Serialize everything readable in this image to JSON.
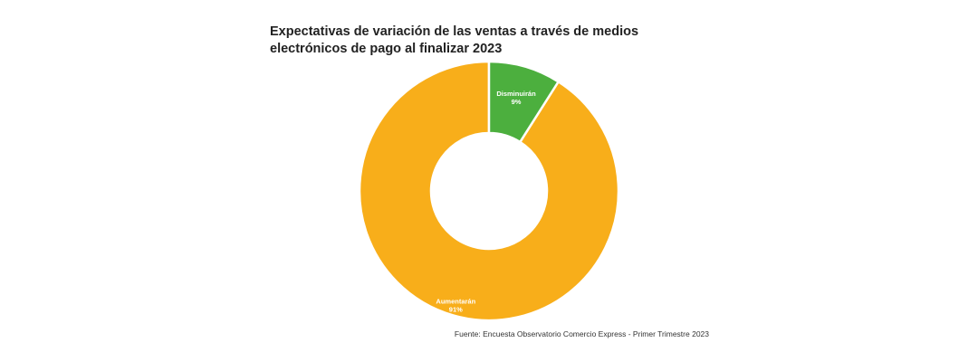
{
  "title": "Expectativas de variación de las ventas a través de medios electrónicos de pago al finalizar 2023",
  "source": "Fuente: Encuesta Observatorio Comercio Express - Primer Trimestre 2023",
  "colors": {
    "aumentaran": "#F8AE1A",
    "disminuiran": "#4CAF3E",
    "separator": "#ffffff",
    "label": "#ffffff"
  },
  "chart_data": {
    "type": "pie",
    "title": "Expectativas de variación de las ventas a través de medios electrónicos de pago al finalizar 2023",
    "donut": true,
    "categories": [
      "Aumentarán",
      "Disminuirán"
    ],
    "values": [
      91,
      9
    ],
    "labels": [
      "91%",
      "9%"
    ],
    "slice_colors": [
      "#F8AE1A",
      "#4CAF3E"
    ]
  }
}
